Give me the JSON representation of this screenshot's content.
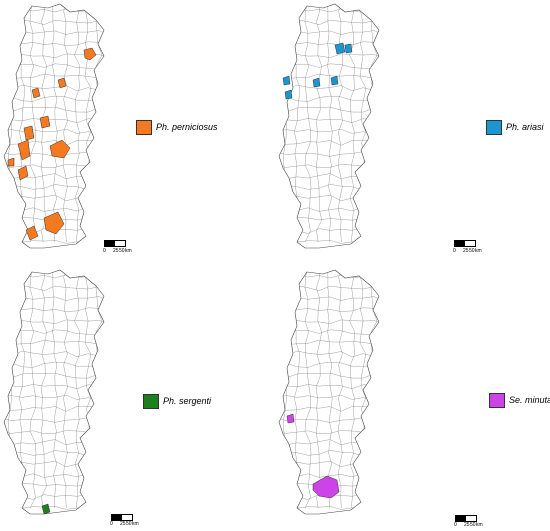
{
  "panels": [
    {
      "id": "perniciosus",
      "species": "Ph. perniciosus",
      "color": "#f47920",
      "scale": {
        "zero": "0",
        "mid": "25",
        "end": "50",
        "unit": "km"
      }
    },
    {
      "id": "ariasi",
      "species": "Ph. ariasi",
      "color": "#1b96d3",
      "scale": {
        "zero": "0",
        "mid": "25",
        "end": "50",
        "unit": "km"
      }
    },
    {
      "id": "sergenti",
      "species": "Ph. sergenti",
      "color": "#1e7f1e",
      "scale": {
        "zero": "0",
        "mid": "25",
        "end": "50",
        "unit": "km"
      }
    },
    {
      "id": "minuta",
      "species": "Se. minuta",
      "color": "#cc44e8",
      "scale": {
        "zero": "0",
        "mid": "25",
        "end": "50",
        "unit": "km"
      }
    }
  ]
}
